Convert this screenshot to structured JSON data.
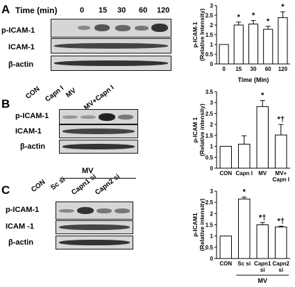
{
  "panelA": {
    "letter": "A",
    "time_label": "Time (min)",
    "times": [
      "0",
      "15",
      "30",
      "60",
      "120"
    ],
    "rows": [
      "p-ICAM-1",
      "ICAM-1",
      "β-actin"
    ]
  },
  "panelB": {
    "letter": "B",
    "lanes": [
      "CON",
      "Capn I",
      "MV",
      "MV+Capn I"
    ],
    "rows": [
      "p-ICAM-1",
      "ICAM-1",
      "β-actin"
    ]
  },
  "panelC": {
    "letter": "C",
    "mv_label": "MV",
    "lanes": [
      "CON",
      "Sc si",
      "Capn1 si",
      "Capn2 si"
    ],
    "rows": [
      "p-ICAM-1",
      "ICAM -1",
      "β-actin"
    ]
  },
  "chart_data": [
    {
      "type": "bar",
      "ylabel": "p-ICAM-1\n(Relative Intensity)",
      "xlabel": "Time (Min)",
      "categories": [
        "0",
        "15",
        "30",
        "60",
        "120"
      ],
      "values": [
        1.0,
        2.0,
        2.05,
        1.78,
        2.38
      ],
      "errors": [
        0,
        0.15,
        0.18,
        0.15,
        0.3
      ],
      "annotations": [
        "",
        "*",
        "*",
        "*",
        "*"
      ],
      "ylim": [
        0,
        3
      ],
      "yticks": [
        "0",
        "0.5",
        "1",
        "1.5",
        "2",
        "2.5",
        "3"
      ]
    },
    {
      "type": "bar",
      "ylabel": "p-ICAM 1\n(Relative intensity)",
      "xlabel": "",
      "categories": [
        "CON",
        "Capn I",
        "MV",
        "MV+\nCapn I"
      ],
      "values": [
        1.0,
        1.1,
        2.82,
        1.52
      ],
      "errors": [
        0,
        0.38,
        0.28,
        0.48
      ],
      "annotations": [
        "",
        "",
        "*",
        "*†"
      ],
      "ylim": [
        0,
        3.5
      ],
      "yticks": [
        "0",
        "0.5",
        "1",
        "1.5",
        "2",
        "2.5",
        "3",
        "3.5"
      ]
    },
    {
      "type": "bar",
      "ylabel": "p-ICAM1\n(Relative intensity)",
      "xlabel": "",
      "categories": [
        "CON",
        "Sc si",
        "Capn1\nsi",
        "Capn2\nsi"
      ],
      "values": [
        1.0,
        2.65,
        1.5,
        1.4
      ],
      "errors": [
        0,
        0.08,
        0.1,
        0.04
      ],
      "annotations": [
        "",
        "*",
        "*†",
        "*†"
      ],
      "group_label": "MV",
      "ylim": [
        0,
        3
      ],
      "yticks": [
        "0",
        "0.5",
        "1",
        "1.5",
        "2",
        "2.5",
        "3"
      ]
    }
  ]
}
